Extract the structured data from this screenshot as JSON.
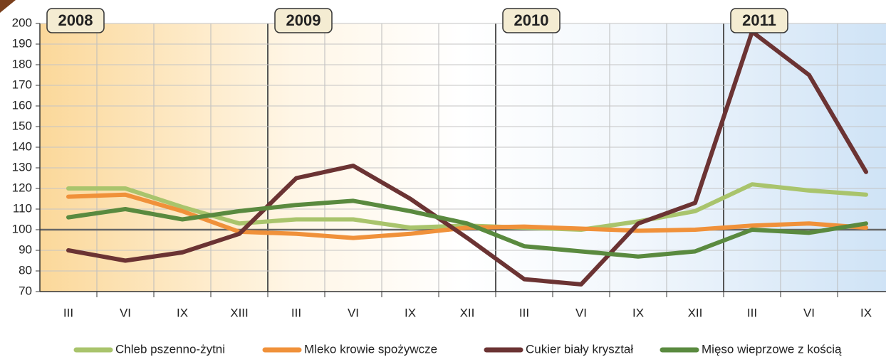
{
  "chart_data": {
    "type": "line",
    "categories": [
      "III",
      "VI",
      "IX",
      "XIII",
      "III",
      "VI",
      "IX",
      "XII",
      "III",
      "VI",
      "IX",
      "XII",
      "III",
      "VI",
      "IX"
    ],
    "annotations": [
      "2008",
      "2009",
      "2010",
      "2011"
    ],
    "series": [
      {
        "name": "Chleb pszenno-żytni",
        "color": "#a9c46c",
        "values": [
          120,
          120,
          111,
          103,
          105,
          105,
          101,
          102,
          101,
          100,
          104,
          109,
          122,
          119,
          117
        ]
      },
      {
        "name": "Mleko krowie spożywcze",
        "color": "#f0913a",
        "values": [
          116,
          117,
          109,
          99,
          98,
          96,
          98,
          101,
          101.5,
          100.5,
          99.5,
          100,
          102,
          103,
          101
        ]
      },
      {
        "name": "Cukier biały kryształ",
        "color": "#6b3333",
        "values": [
          90,
          85,
          89,
          98,
          125,
          131,
          115,
          96,
          76,
          73.5,
          103,
          113,
          196,
          175,
          128
        ]
      },
      {
        "name": "Mięso wieprzowe z kością",
        "color": "#5a8a3f",
        "values": [
          106,
          110,
          105,
          109,
          112,
          114,
          109,
          103,
          92,
          89.5,
          87,
          89.5,
          100,
          98.5,
          103
        ]
      }
    ],
    "ylim": [
      70,
      200
    ],
    "yticks": [
      70,
      80,
      90,
      100,
      110,
      120,
      130,
      140,
      150,
      160,
      170,
      180,
      190,
      200
    ],
    "baseline": 100,
    "grid": true
  }
}
